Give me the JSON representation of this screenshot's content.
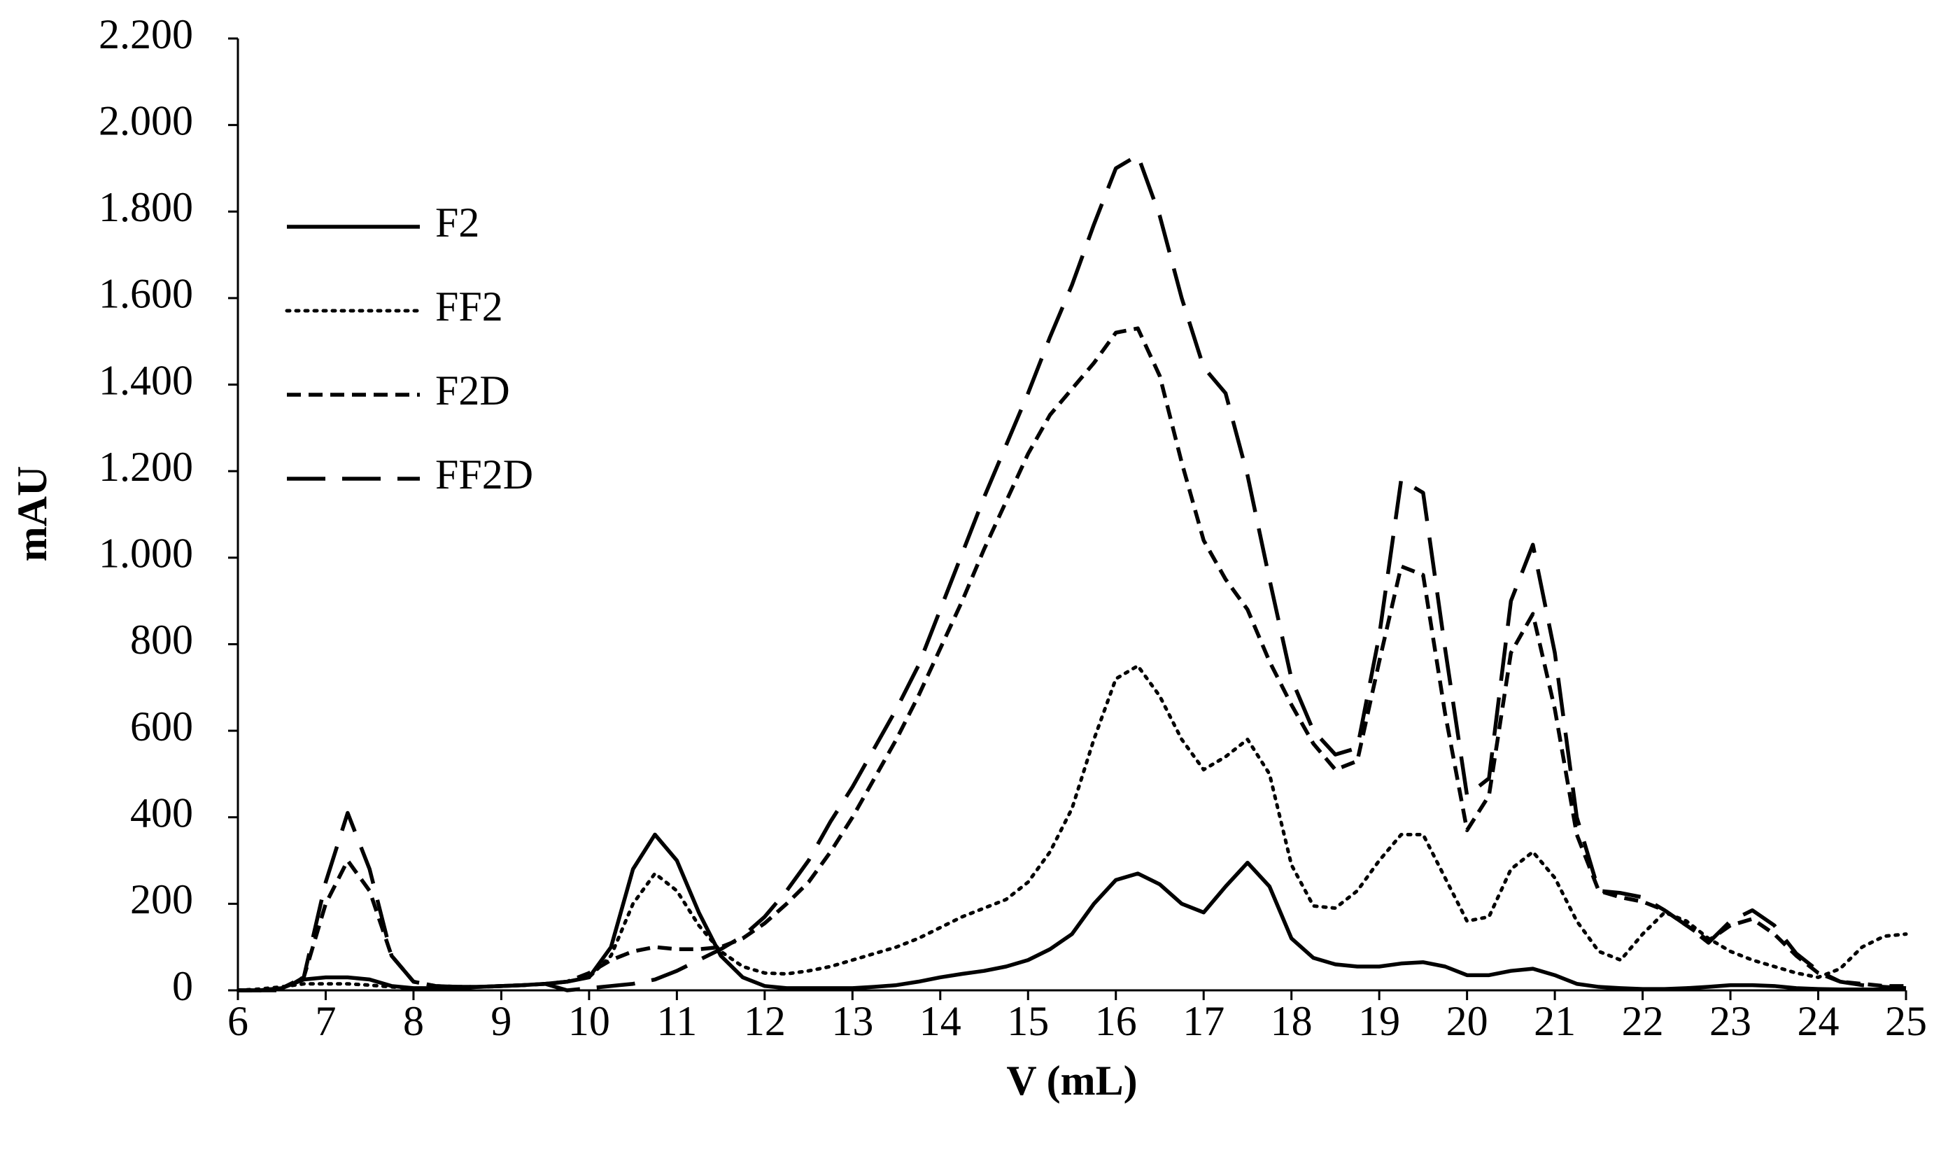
{
  "chart_data": {
    "type": "line",
    "xlabel": "V (mL)",
    "ylabel": "mAU",
    "x": [
      6,
      6.25,
      6.5,
      6.75,
      7,
      7.25,
      7.5,
      7.75,
      8,
      8.25,
      8.5,
      8.75,
      9,
      9.25,
      9.5,
      9.75,
      10,
      10.25,
      10.5,
      10.75,
      11,
      11.25,
      11.5,
      11.75,
      12,
      12.25,
      12.5,
      12.75,
      13,
      13.25,
      13.5,
      13.75,
      14,
      14.25,
      14.5,
      14.75,
      15,
      15.25,
      15.5,
      15.75,
      16,
      16.25,
      16.5,
      16.75,
      17,
      17.25,
      17.5,
      17.75,
      18,
      18.25,
      18.5,
      18.75,
      19,
      19.25,
      19.5,
      19.75,
      20,
      20.25,
      20.5,
      20.75,
      21,
      21.25,
      21.5,
      21.75,
      22,
      22.25,
      22.5,
      22.75,
      23,
      23.25,
      23.5,
      23.75,
      24,
      24.25,
      24.5,
      24.75,
      25
    ],
    "series": [
      {
        "name": "F2",
        "color": "#000000",
        "dash": "solid",
        "values": [
          0,
          0,
          5,
          25,
          30,
          30,
          25,
          10,
          5,
          5,
          5,
          8,
          10,
          12,
          15,
          20,
          30,
          100,
          280,
          360,
          300,
          180,
          80,
          30,
          10,
          5,
          5,
          5,
          5,
          8,
          12,
          20,
          30,
          38,
          45,
          55,
          70,
          95,
          130,
          200,
          255,
          270,
          245,
          200,
          180,
          240,
          295,
          240,
          120,
          75,
          60,
          55,
          55,
          62,
          65,
          55,
          35,
          35,
          45,
          50,
          35,
          15,
          8,
          5,
          3,
          3,
          5,
          8,
          12,
          12,
          10,
          5,
          3,
          2,
          2,
          2,
          2
        ]
      },
      {
        "name": "FF2",
        "color": "#000000",
        "dash": "dotted",
        "values": [
          0,
          3,
          8,
          15,
          15,
          15,
          12,
          8,
          5,
          5,
          5,
          8,
          10,
          12,
          15,
          20,
          30,
          80,
          200,
          270,
          230,
          150,
          90,
          55,
          40,
          38,
          45,
          55,
          70,
          85,
          100,
          120,
          145,
          170,
          190,
          210,
          250,
          320,
          420,
          580,
          720,
          750,
          680,
          580,
          510,
          540,
          580,
          500,
          290,
          195,
          190,
          230,
          300,
          360,
          360,
          260,
          160,
          170,
          280,
          320,
          260,
          160,
          90,
          70,
          130,
          180,
          160,
          120,
          90,
          70,
          55,
          40,
          30,
          50,
          100,
          125,
          130
        ]
      },
      {
        "name": "F2D",
        "color": "#000000",
        "dash": "dashed",
        "values": [
          0,
          0,
          5,
          30,
          200,
          300,
          230,
          80,
          20,
          10,
          8,
          8,
          10,
          12,
          15,
          20,
          40,
          70,
          90,
          100,
          95,
          95,
          100,
          120,
          155,
          200,
          250,
          320,
          400,
          490,
          580,
          680,
          790,
          900,
          1020,
          1130,
          1240,
          1330,
          1390,
          1450,
          1520,
          1530,
          1420,
          1220,
          1040,
          950,
          880,
          760,
          660,
          570,
          510,
          530,
          760,
          980,
          960,
          640,
          370,
          450,
          780,
          870,
          650,
          360,
          230,
          215,
          205,
          185,
          150,
          115,
          150,
          165,
          130,
          80,
          40,
          20,
          15,
          10,
          10
        ]
      },
      {
        "name": "FF2D",
        "color": "#000000",
        "dash": "longdash",
        "values": [
          0,
          0,
          0,
          30,
          250,
          410,
          280,
          80,
          20,
          10,
          8,
          8,
          10,
          12,
          15,
          0,
          5,
          10,
          15,
          25,
          45,
          70,
          95,
          125,
          170,
          230,
          300,
          390,
          470,
          560,
          650,
          750,
          880,
          1010,
          1140,
          1260,
          1380,
          1510,
          1630,
          1770,
          1900,
          1930,
          1790,
          1600,
          1440,
          1380,
          1190,
          950,
          720,
          600,
          545,
          560,
          820,
          1180,
          1150,
          790,
          450,
          490,
          900,
          1030,
          780,
          400,
          230,
          225,
          215,
          185,
          150,
          110,
          160,
          185,
          150,
          85,
          45,
          20,
          12,
          8,
          5
        ]
      }
    ],
    "xlim": [
      6,
      25
    ],
    "xticks": [
      6,
      7,
      8,
      9,
      10,
      11,
      12,
      13,
      14,
      15,
      16,
      17,
      18,
      19,
      20,
      21,
      22,
      23,
      24,
      25
    ],
    "ylim": [
      0,
      2200
    ],
    "yticks": [
      0,
      200,
      400,
      600,
      800,
      {
        "value": 1000,
        "label": "1.000"
      },
      {
        "value": 1200,
        "label": "1.200"
      },
      {
        "value": 1400,
        "label": "1.400"
      },
      {
        "value": 1600,
        "label": "1.600"
      },
      {
        "value": 1800,
        "label": "1.800"
      },
      {
        "value": 2000,
        "label": "2.000"
      },
      {
        "value": 2200,
        "label": "2.200"
      }
    ],
    "grid": false,
    "legend": "upper left"
  }
}
